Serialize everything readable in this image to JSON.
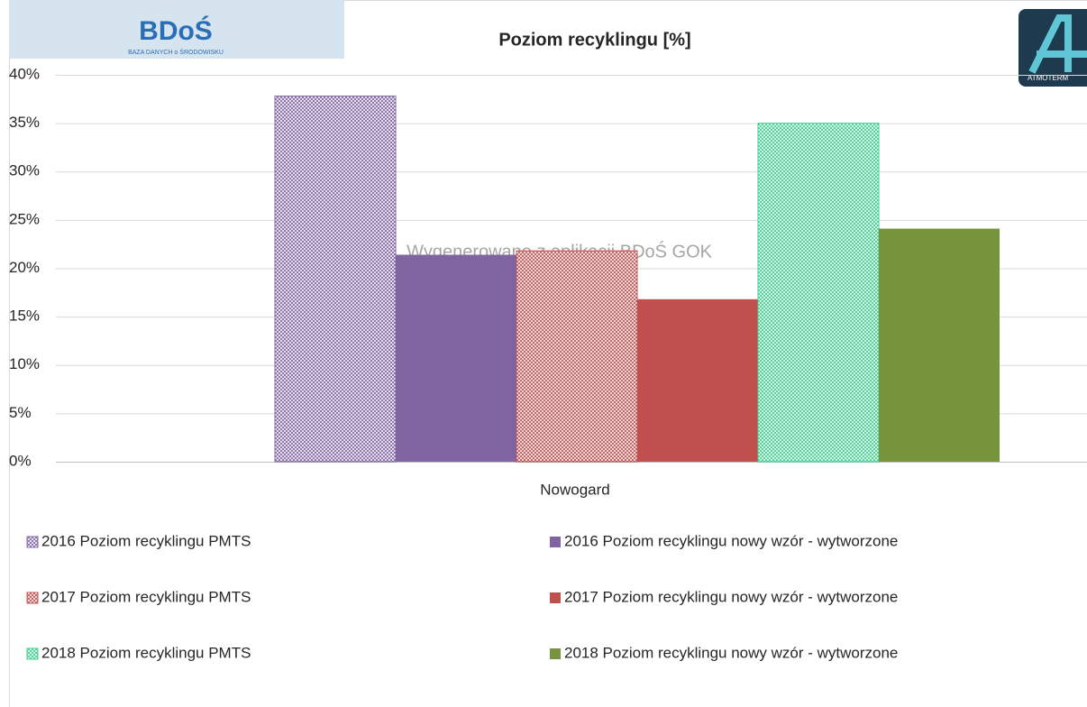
{
  "logos": {
    "bdos": "BDoŚ",
    "bdos_sub": "BAZA DANYCH o ŚRODOWISKU",
    "atmoterm": "ATMOTERM"
  },
  "chart_data": {
    "type": "bar",
    "title": "Poziom recyklingu [%]",
    "watermark": "Wygenerowano z aplikacji BDoŚ GOK",
    "categories": [
      "Nowogard"
    ],
    "series": [
      {
        "name": "2016 Poziom recyklingu PMTS",
        "color": "#8064a2",
        "pattern": "checker",
        "values": [
          37.8
        ]
      },
      {
        "name": "2016 Poziom recyklingu nowy wzór - wytworzone",
        "color": "#8064a2",
        "values": [
          21.4
        ]
      },
      {
        "name": "2017 Poziom recyklingu PMTS",
        "color": "#c0504d",
        "pattern": "checker",
        "values": [
          21.8
        ]
      },
      {
        "name": "2017 Poziom recyklingu nowy wzór - wytworzone",
        "color": "#c0504d",
        "values": [
          16.8
        ]
      },
      {
        "name": "2018 Poziom recyklingu PMTS",
        "color": "#3ccf8e",
        "pattern": "checker",
        "values": [
          35.0
        ]
      },
      {
        "name": "2018 Poziom recyklingu nowy wzór - wytworzone",
        "color": "#77933c",
        "values": [
          24.1
        ]
      }
    ],
    "ylim": [
      0,
      40
    ],
    "yticks": [
      {
        "value": 0,
        "label": "0%"
      },
      {
        "value": 5,
        "label": "5%"
      },
      {
        "value": 10,
        "label": "10%"
      },
      {
        "value": 15,
        "label": "15%"
      },
      {
        "value": 20,
        "label": "20%"
      },
      {
        "value": 25,
        "label": "25%"
      },
      {
        "value": 30,
        "label": "30%"
      },
      {
        "value": 35,
        "label": "35%"
      },
      {
        "value": 40,
        "label": "40%"
      }
    ],
    "grid": true,
    "legend": "bottom"
  }
}
